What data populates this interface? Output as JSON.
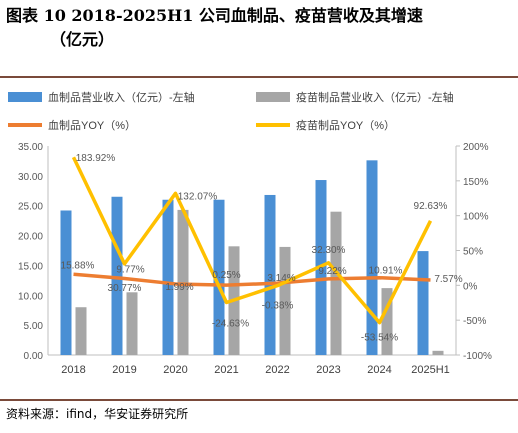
{
  "title_line1": "图表 10 2018-2025H1 公司血制品、疫苗营收及其增速",
  "title_line2": "（亿元）",
  "source": "资料来源：ifind，华安证券研究所",
  "colors": {
    "blood_bar": "#4a8fd4",
    "vaccine_bar": "#a6a6a6",
    "blood_line": "#ed7d31",
    "vaccine_line": "#ffc000",
    "rule": "#7a4a3a"
  },
  "chart_data": {
    "type": "bar",
    "categories": [
      "2018",
      "2019",
      "2020",
      "2021",
      "2022",
      "2023",
      "2024",
      "2025H1"
    ],
    "series": [
      {
        "name": "血制品营业收入（亿元）-左轴",
        "type": "bar",
        "axis": "left",
        "values": [
          24.2,
          26.5,
          26.0,
          26.0,
          26.8,
          29.3,
          32.6,
          17.4
        ]
      },
      {
        "name": "疫苗制品营业收入（亿元）-左轴",
        "type": "bar",
        "axis": "left",
        "values": [
          8.0,
          10.5,
          24.3,
          18.2,
          18.1,
          24.0,
          11.2,
          0.7
        ]
      },
      {
        "name": "血制品YOY（%）",
        "type": "line",
        "axis": "right",
        "values": [
          15.88,
          9.77,
          1.99,
          0.25,
          3.14,
          9.22,
          10.91,
          7.57
        ],
        "labels": [
          "15.88%",
          "9.77%",
          "1.99%",
          "0.25%",
          "3.14%",
          "9.22%",
          "10.91%",
          "7.57%"
        ]
      },
      {
        "name": "疫苗制品YOY（%）",
        "type": "line",
        "axis": "right",
        "values": [
          183.92,
          30.77,
          132.07,
          -24.63,
          -0.38,
          32.3,
          -53.54,
          92.63
        ],
        "labels": [
          "183.92%",
          "30.77%",
          "132.07%",
          "-24.63%",
          "-0.38%",
          "32.30%",
          "-53.54%",
          "92.63%"
        ]
      }
    ],
    "y_left": {
      "min": 0,
      "max": 35,
      "ticks": [
        "0.00",
        "5.00",
        "10.00",
        "15.00",
        "20.00",
        "25.00",
        "30.00",
        "35.00"
      ]
    },
    "y_right": {
      "min": -100,
      "max": 200,
      "ticks": [
        "-100%",
        "-50%",
        "0%",
        "50%",
        "100%",
        "150%",
        "200%"
      ]
    },
    "legend_position": "top",
    "grid": false
  }
}
